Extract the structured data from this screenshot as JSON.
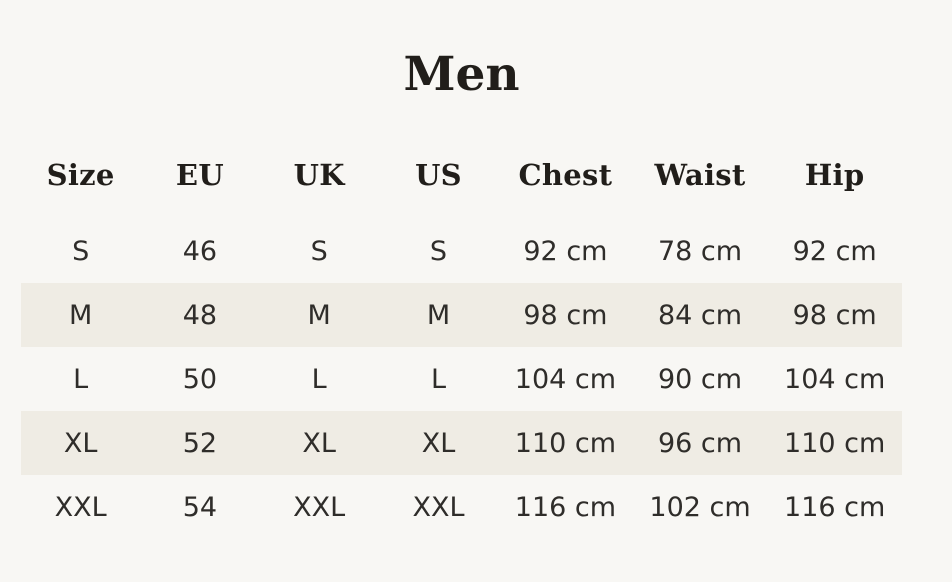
{
  "title": "Men",
  "chart_data": {
    "type": "table",
    "title": "Men",
    "columns": [
      "Size",
      "EU",
      "UK",
      "US",
      "Chest",
      "Waist",
      "Hip"
    ],
    "rows": [
      [
        "S",
        "46",
        "S",
        "S",
        "92 cm",
        "78 cm",
        "92 cm"
      ],
      [
        "M",
        "48",
        "M",
        "M",
        "98 cm",
        "84 cm",
        "98 cm"
      ],
      [
        "L",
        "50",
        "L",
        "L",
        "104 cm",
        "90 cm",
        "104 cm"
      ],
      [
        "XL",
        "52",
        "XL",
        "XL",
        "110 cm",
        "96 cm",
        "110 cm"
      ],
      [
        "XXL",
        "54",
        "XXL",
        "XXL",
        "116 cm",
        "102 cm",
        "116 cm"
      ]
    ],
    "legend_position": "none",
    "grid": false
  },
  "colors": {
    "background": "#f8f7f4",
    "row_stripe": "#efece4",
    "heading_text": "#211e1a",
    "body_text": "#2f2d2a"
  }
}
